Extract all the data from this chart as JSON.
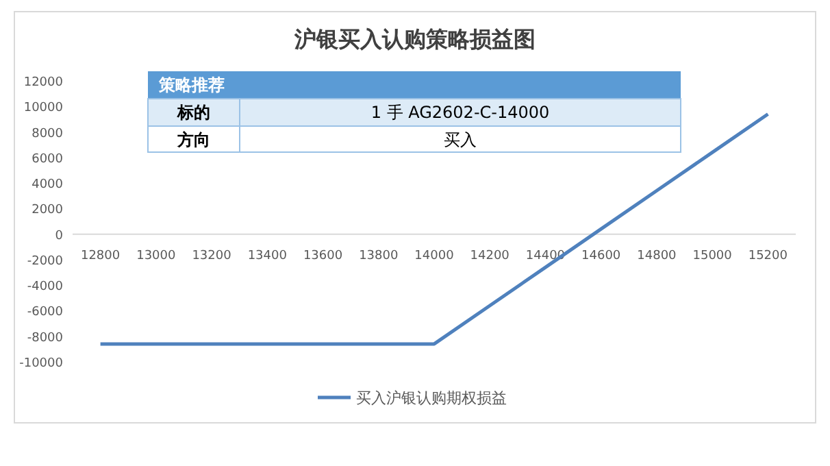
{
  "chart_data": {
    "type": "line",
    "title": "沪银买入认购策略损益图",
    "categories": [
      "12800",
      "13000",
      "13200",
      "13400",
      "13600",
      "13800",
      "14000",
      "14200",
      "14400",
      "14600",
      "14800",
      "15000",
      "15200"
    ],
    "series": [
      {
        "name": "买入沪银认购期权损益",
        "color": "#4f81bd",
        "values": [
          -8600,
          -8600,
          -8600,
          -8600,
          -8600,
          -8600,
          -8600,
          -5600,
          -2600,
          400,
          3400,
          6400,
          9400
        ]
      }
    ],
    "ylim": [
      -10000,
      12000
    ],
    "yticks": [
      -10000,
      -8000,
      -6000,
      -4000,
      -2000,
      0,
      2000,
      4000,
      6000,
      8000,
      10000,
      12000
    ],
    "grid": false,
    "legend": "bottom",
    "marker": "none",
    "line_style": "solid",
    "annotations": [
      "策略推荐",
      "标的",
      "1 手 AG2602-C-14000",
      "方向",
      "买入"
    ]
  }
}
